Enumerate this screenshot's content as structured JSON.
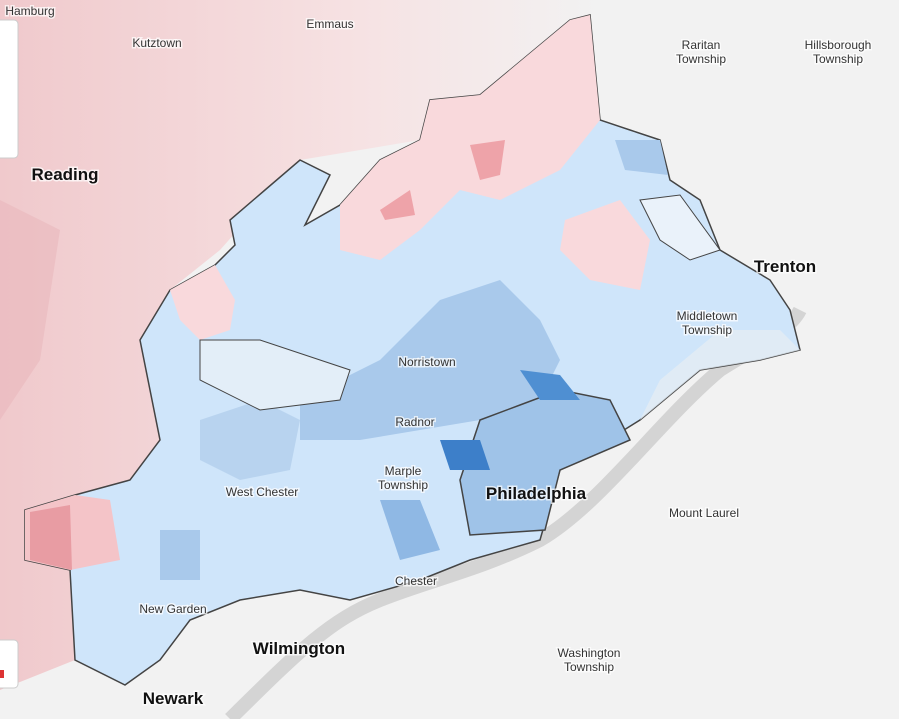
{
  "places": [
    {
      "lines": [
        "Hamburg"
      ]
    },
    {
      "lines": [
        "Kutztown"
      ]
    },
    {
      "lines": [
        "Emmaus"
      ]
    },
    {
      "lines": [
        "Raritan",
        "Township"
      ]
    },
    {
      "lines": [
        "Hillsborough",
        "Township"
      ]
    },
    {
      "lines": [
        "Reading"
      ]
    },
    {
      "lines": [
        "Trenton"
      ]
    },
    {
      "lines": [
        "Middletown",
        "Township"
      ]
    },
    {
      "lines": [
        "Norristown"
      ]
    },
    {
      "lines": [
        "Radnor"
      ]
    },
    {
      "lines": [
        "Marple",
        "Township"
      ]
    },
    {
      "lines": [
        "Philadelphia"
      ]
    },
    {
      "lines": [
        "West Chester"
      ]
    },
    {
      "lines": [
        "Mount Laurel"
      ]
    },
    {
      "lines": [
        "Chester"
      ]
    },
    {
      "lines": [
        "New Garden"
      ]
    },
    {
      "lines": [
        "Wilmington"
      ]
    },
    {
      "lines": [
        "Washington",
        "Township"
      ]
    },
    {
      "lines": [
        "Newark"
      ]
    }
  ]
}
